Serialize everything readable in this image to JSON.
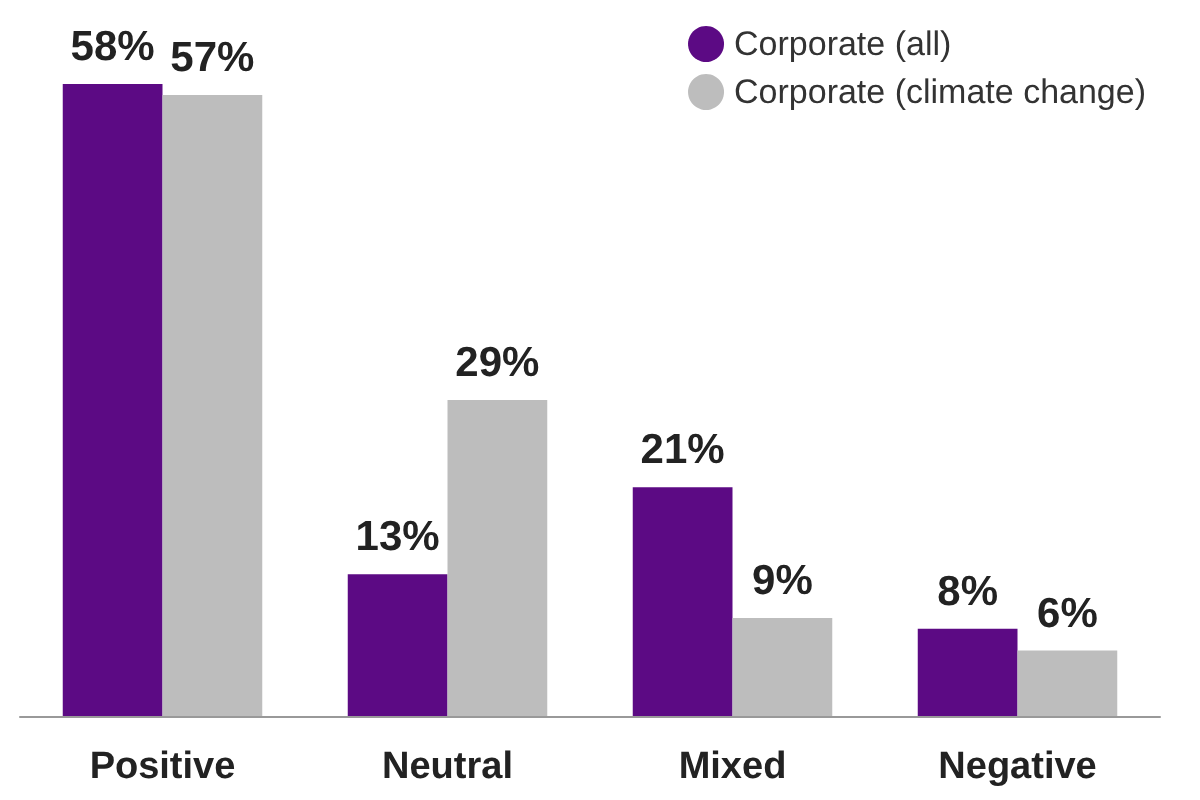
{
  "chart_data": {
    "type": "bar",
    "categories": [
      "Positive",
      "Neutral",
      "Mixed",
      "Negative"
    ],
    "series": [
      {
        "name": "Corporate (all)",
        "color": "#5c0a84",
        "values": [
          58,
          13,
          21,
          8
        ],
        "value_labels": [
          "58%",
          "13%",
          "21%",
          "8%"
        ]
      },
      {
        "name": "Corporate (climate change)",
        "color": "#bdbdbd",
        "values": [
          57,
          29,
          9,
          6
        ],
        "value_labels": [
          "57%",
          "29%",
          "9%",
          "6%"
        ]
      }
    ],
    "legend": "top right"
  }
}
